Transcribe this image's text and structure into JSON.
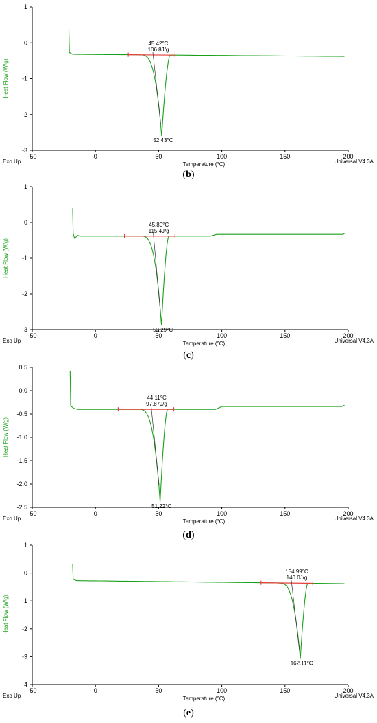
{
  "charts": [
    {
      "caption_letter": "b",
      "type": "line",
      "ylabel": "Heat Flow (W/g)",
      "xlabel": "Temperature (°C)",
      "exo_label": "Exo Up",
      "version_label": "Universal V4.3A",
      "xlim": [
        -50,
        200
      ],
      "ylim": [
        -3,
        1
      ],
      "xticks": [
        "-50",
        "0",
        "50",
        "100",
        "150",
        "200"
      ],
      "yticks": [
        "1",
        "0",
        "-1",
        "-2",
        "-3"
      ],
      "line_color": "#1aa11a",
      "baseline_color": "#e8403a",
      "onset_label": "45.42°C",
      "enthalpy_label": "106.8J/g",
      "peak_label": "52.43°C",
      "start_x": -21,
      "start_y": 0.38,
      "early_y": -0.32,
      "end_x": 197,
      "end_y": -0.38,
      "baseline_start": 26,
      "baseline_end": 63,
      "onset": 45.42,
      "peak_x": 52.43,
      "peak_y": -2.6,
      "end_peak": 59,
      "step_x": null,
      "step_y": null,
      "dip": false
    },
    {
      "caption_letter": "c",
      "type": "line",
      "ylabel": "Heat Flow (W/g)",
      "xlabel": "Temperature (°C)",
      "exo_label": "Exo Up",
      "version_label": "Universal V4.3A",
      "xlim": [
        -50,
        200
      ],
      "ylim": [
        -3,
        1
      ],
      "xticks": [
        "-50",
        "0",
        "50",
        "100",
        "150",
        "200"
      ],
      "yticks": [
        "1",
        "0",
        "-1",
        "-2",
        "-3"
      ],
      "line_color": "#1aa11a",
      "baseline_color": "#e8403a",
      "onset_label": "45.80°C",
      "enthalpy_label": "115.4J/g",
      "peak_label": "52.29°C",
      "start_x": -18,
      "start_y": 0.4,
      "early_y": -0.36,
      "end_x": 197,
      "end_y": -0.31,
      "baseline_start": 23,
      "baseline_end": 63,
      "onset": 45.8,
      "peak_x": 52.29,
      "peak_y": -2.88,
      "end_peak": 58,
      "step_x": 95,
      "step_y": -0.33,
      "dip": true
    },
    {
      "caption_letter": "d",
      "type": "line",
      "ylabel": "Heat Flow (W/g)",
      "xlabel": "Temperature (°C)",
      "exo_label": "Exo Up",
      "version_label": "Universal V4.3A",
      "xlim": [
        -50,
        200
      ],
      "ylim": [
        -2.5,
        0.5
      ],
      "xticks": [
        "-50",
        "0",
        "50",
        "100",
        "150",
        "200"
      ],
      "yticks": [
        "0.5",
        "0.0",
        "-0.5",
        "-1.0",
        "-1.5",
        "-2.0",
        "-2.5"
      ],
      "line_color": "#1aa11a",
      "baseline_color": "#e8403a",
      "onset_label": "44.11°C",
      "enthalpy_label": "97.87J/g",
      "peak_label": "51.22°C",
      "start_x": -20,
      "start_y": 0.42,
      "early_y": -0.38,
      "end_x": 197,
      "end_y": -0.31,
      "baseline_start": 18,
      "baseline_end": 62,
      "onset": 44.11,
      "peak_x": 51.22,
      "peak_y": -2.38,
      "end_peak": 57,
      "step_x": 95,
      "step_y": -0.34,
      "dip": false
    },
    {
      "caption_letter": "e",
      "type": "line",
      "ylabel": "Heat Flow (W/g)",
      "xlabel": "Temperature (°C)",
      "exo_label": "Exo Up",
      "version_label": "Universal V4.3A",
      "xlim": [
        -50,
        200
      ],
      "ylim": [
        -4,
        1
      ],
      "xticks": [
        "-50",
        "0",
        "50",
        "100",
        "150",
        "200"
      ],
      "yticks": [
        "1",
        "0",
        "-1",
        "-2",
        "-3",
        "-4"
      ],
      "line_color": "#1aa11a",
      "baseline_color": "#e8403a",
      "onset_label": "154.99°C",
      "enthalpy_label": "140.0J/g",
      "peak_label": "162.11°C",
      "start_x": -18,
      "start_y": 0.32,
      "early_y": -0.27,
      "end_x": 197,
      "end_y": -0.38,
      "baseline_start": 131,
      "baseline_end": 172,
      "onset": 154.99,
      "peak_x": 162.11,
      "peak_y": -3.08,
      "end_peak": 168,
      "step_x": null,
      "step_y": null,
      "dip": false
    }
  ]
}
